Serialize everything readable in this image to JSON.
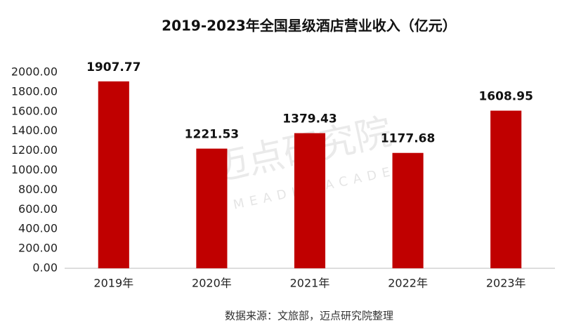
{
  "chart_data": {
    "type": "bar",
    "title": "2019-2023年全国星级酒店营业收入（亿元）",
    "categories": [
      "2019年",
      "2020年",
      "2021年",
      "2022年",
      "2023年"
    ],
    "values": [
      1907.77,
      1221.53,
      1379.43,
      1177.68,
      1608.95
    ],
    "color": "#c00000",
    "ylim": [
      0,
      2000
    ],
    "yticks": [
      {
        "value": 0,
        "label": "0.00"
      },
      {
        "value": 200,
        "label": "200.00"
      },
      {
        "value": 400,
        "label": "400.00"
      },
      {
        "value": 600,
        "label": "600.00"
      },
      {
        "value": 800,
        "label": "800.00"
      },
      {
        "value": 1000,
        "label": "1000.00"
      },
      {
        "value": 1200,
        "label": "1200.00"
      },
      {
        "value": 1400,
        "label": "1400.00"
      },
      {
        "value": 1600,
        "label": "1600.00"
      },
      {
        "value": 1800,
        "label": "1800.00"
      },
      {
        "value": 2000,
        "label": "2000.00"
      }
    ],
    "grid": false,
    "source": "数据来源：文旅部，迈点研究院整理",
    "watermark": "迈点研究院",
    "watermark_en": "MEADIN ACADEMY"
  }
}
